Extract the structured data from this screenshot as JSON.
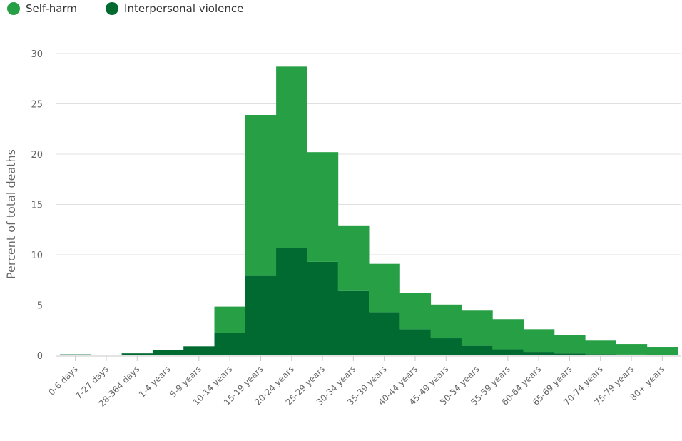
{
  "chart_data": {
    "type": "bar",
    "stacked": true,
    "ylabel": "Percent of total deaths",
    "xlabel": "",
    "title": "",
    "ylim": [
      0,
      30
    ],
    "yticks": [
      0,
      5,
      10,
      15,
      20,
      25,
      30
    ],
    "grid": true,
    "legend_position": "top-left",
    "categories": [
      "0-6 days",
      "7-27 days",
      "28-364 days",
      "1-4 years",
      "5-9 years",
      "10-14 years",
      "15-19 years",
      "20-24 years",
      "25-29 years",
      "30-34 years",
      "35-39 years",
      "40-44 years",
      "45-49 years",
      "50-54 years",
      "55-59 years",
      "60-64 years",
      "65-69 years",
      "70-74 years",
      "75-79 years",
      "80+ years"
    ],
    "series": [
      {
        "name": "Interpersonal violence",
        "color": "#006a31",
        "values": [
          0.1,
          0.05,
          0.2,
          0.5,
          0.9,
          2.2,
          7.9,
          10.7,
          9.3,
          6.4,
          4.3,
          2.6,
          1.7,
          0.95,
          0.6,
          0.35,
          0.2,
          0.12,
          0.08,
          0.05
        ]
      },
      {
        "name": "Self-harm",
        "color": "#27a045",
        "values": [
          0.0,
          0.0,
          0.0,
          0.0,
          0.0,
          2.65,
          16.0,
          18.0,
          10.9,
          6.45,
          4.8,
          3.6,
          3.35,
          3.5,
          3.0,
          2.25,
          1.8,
          1.35,
          1.05,
          0.8
        ]
      }
    ]
  }
}
